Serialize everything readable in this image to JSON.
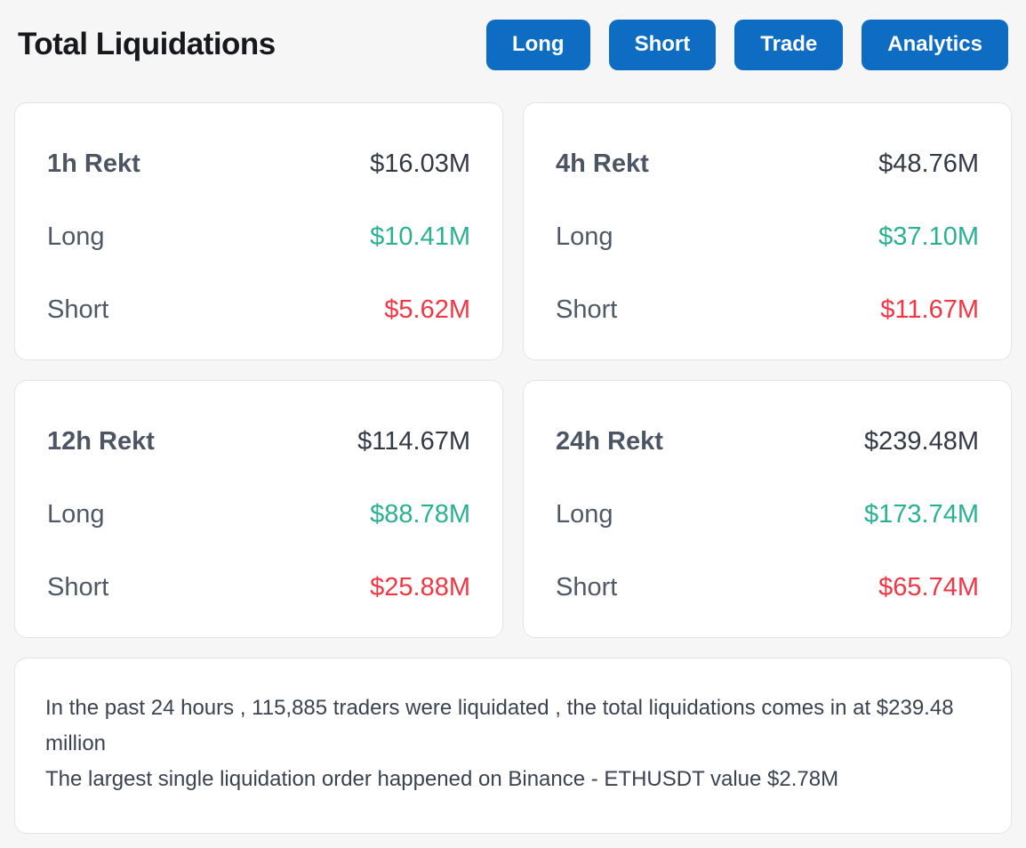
{
  "header": {
    "title": "Total Liquidations",
    "buttons": [
      {
        "label": "Long"
      },
      {
        "label": "Short"
      },
      {
        "label": "Trade"
      },
      {
        "label": "Analytics"
      }
    ]
  },
  "cards": [
    {
      "period": "1h Rekt",
      "total": "$16.03M",
      "long_label": "Long",
      "long_value": "$10.41M",
      "short_label": "Short",
      "short_value": "$5.62M"
    },
    {
      "period": "4h Rekt",
      "total": "$48.76M",
      "long_label": "Long",
      "long_value": "$37.10M",
      "short_label": "Short",
      "short_value": "$11.67M"
    },
    {
      "period": "12h Rekt",
      "total": "$114.67M",
      "long_label": "Long",
      "long_value": "$88.78M",
      "short_label": "Short",
      "short_value": "$25.88M"
    },
    {
      "period": "24h Rekt",
      "total": "$239.48M",
      "long_label": "Long",
      "long_value": "$173.74M",
      "short_label": "Short",
      "short_value": "$65.74M"
    }
  ],
  "summary": {
    "line1": "In the past 24 hours , 115,885 traders were liquidated , the total liquidations comes in at $239.48 million",
    "line2": "The largest single liquidation order happened on Binance - ETHUSDT value $2.78M"
  },
  "colors": {
    "accent_blue": "#0e6cc2",
    "long_green": "#2ab194",
    "short_red": "#f23645",
    "page_background": "#f6f6f7",
    "card_background": "#ffffff"
  }
}
